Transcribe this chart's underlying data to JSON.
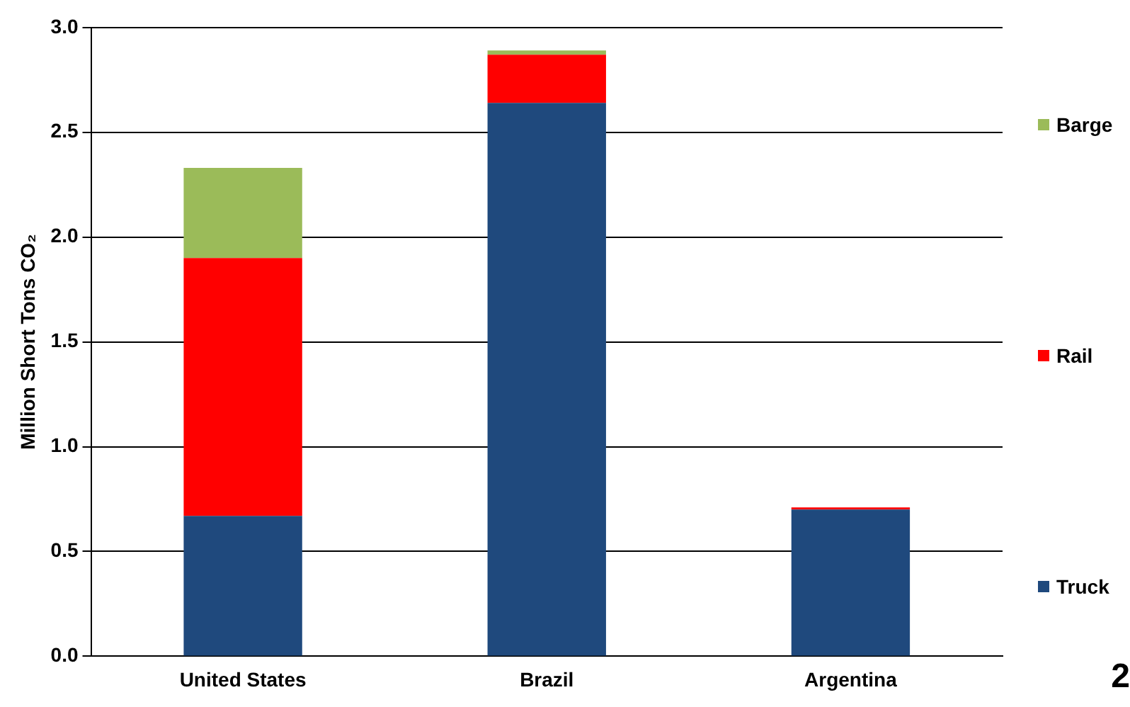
{
  "chart_data": {
    "type": "bar",
    "stacked": true,
    "ylabel": "Million Short Tons CO₂",
    "categories": [
      "United States",
      "Brazil",
      "Argentina"
    ],
    "series": [
      {
        "name": "Truck",
        "color": "#1f497d",
        "values": [
          0.67,
          2.64,
          0.7
        ]
      },
      {
        "name": "Rail",
        "color": "#ff0000",
        "values": [
          1.23,
          0.23,
          0.01
        ]
      },
      {
        "name": "Barge",
        "color": "#9bbb59",
        "values": [
          0.43,
          0.02,
          0
        ]
      }
    ],
    "ylim": [
      0,
      3
    ],
    "yticks": [
      {
        "value": 0,
        "label": "0.0"
      },
      {
        "value": 0.5,
        "label": "0.5"
      },
      {
        "value": 1,
        "label": "1.0"
      },
      {
        "value": 1.5,
        "label": "1.5"
      },
      {
        "value": 2,
        "label": "2.0"
      },
      {
        "value": 2.5,
        "label": "2.5"
      },
      {
        "value": 3,
        "label": "3.0"
      }
    ],
    "grid": "y",
    "legend": "right",
    "annotations": [
      "2"
    ]
  }
}
